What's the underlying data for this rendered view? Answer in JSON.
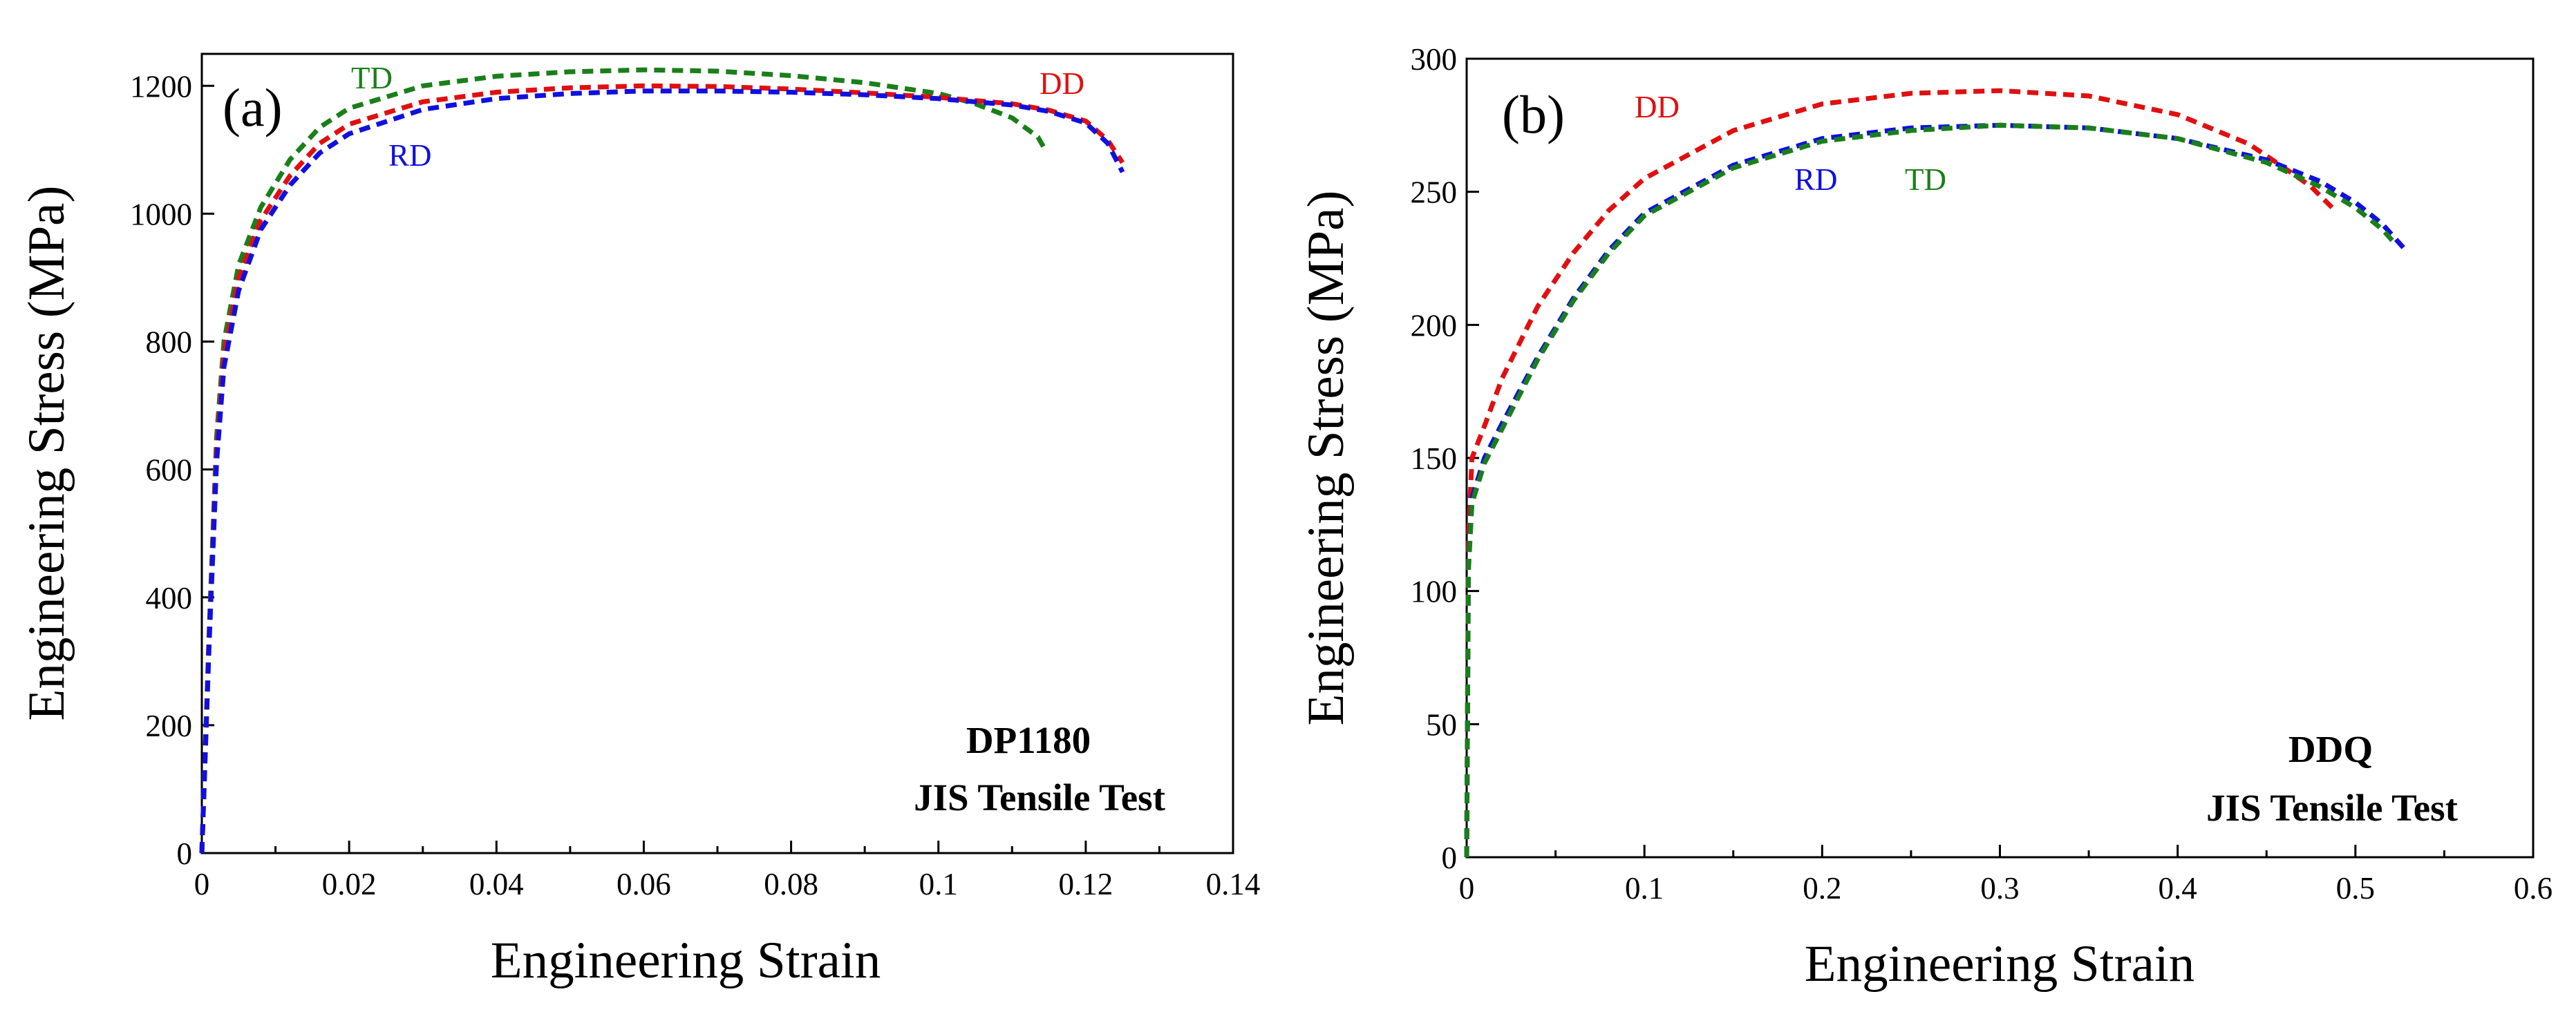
{
  "chart_data": [
    {
      "type": "line",
      "panel_label": "(a)",
      "xlabel": "Engineering Strain",
      "ylabel": "Engineering Stress (MPa)",
      "xlim": [
        0,
        0.14
      ],
      "ylim": [
        0,
        1250
      ],
      "x_ticks": [
        0,
        0.02,
        0.04,
        0.06,
        0.08,
        0.1,
        0.12,
        0.14
      ],
      "x_tick_labels": [
        "0",
        "0.02",
        "0.04",
        "0.06",
        "0.08",
        "0.1",
        "0.12",
        "0.14"
      ],
      "y_ticks": [
        0,
        200,
        400,
        600,
        800,
        1000,
        1200
      ],
      "y_tick_labels": [
        "0",
        "200",
        "400",
        "600",
        "800",
        "1000",
        "1200"
      ],
      "grid": false,
      "line_style": "dashed",
      "annotations": [
        "DP1180",
        "JIS Tensile Test"
      ],
      "series": [
        {
          "name": "TD",
          "color": "#1a7f1a",
          "x": [
            0,
            0.001,
            0.002,
            0.003,
            0.005,
            0.008,
            0.012,
            0.016,
            0.02,
            0.03,
            0.04,
            0.05,
            0.06,
            0.07,
            0.08,
            0.09,
            0.1,
            0.105,
            0.11,
            0.1135,
            0.1145
          ],
          "y": [
            0,
            350,
            650,
            800,
            920,
            1010,
            1085,
            1135,
            1165,
            1200,
            1215,
            1222,
            1225,
            1223,
            1216,
            1205,
            1188,
            1172,
            1150,
            1120,
            1100
          ]
        },
        {
          "name": "DD",
          "color": "#e01010",
          "x": [
            0,
            0.001,
            0.002,
            0.003,
            0.005,
            0.008,
            0.012,
            0.016,
            0.02,
            0.03,
            0.04,
            0.05,
            0.06,
            0.07,
            0.08,
            0.09,
            0.1,
            0.11,
            0.115,
            0.12,
            0.123,
            0.125
          ],
          "y": [
            0,
            340,
            630,
            780,
            900,
            990,
            1060,
            1110,
            1140,
            1175,
            1190,
            1197,
            1200,
            1199,
            1195,
            1189,
            1182,
            1172,
            1162,
            1145,
            1115,
            1080
          ]
        },
        {
          "name": "RD",
          "color": "#1010e0",
          "x": [
            0,
            0.001,
            0.002,
            0.003,
            0.005,
            0.008,
            0.012,
            0.016,
            0.02,
            0.03,
            0.04,
            0.05,
            0.06,
            0.07,
            0.08,
            0.09,
            0.1,
            0.11,
            0.115,
            0.12,
            0.123,
            0.125
          ],
          "y": [
            0,
            330,
            610,
            760,
            880,
            975,
            1045,
            1095,
            1125,
            1163,
            1180,
            1188,
            1192,
            1192,
            1190,
            1186,
            1180,
            1170,
            1160,
            1142,
            1110,
            1065
          ]
        }
      ]
    },
    {
      "type": "line",
      "panel_label": "(b)",
      "xlabel": "Engineering Strain",
      "ylabel": "Engineering Stress (MPa)",
      "xlim": [
        0,
        0.6
      ],
      "ylim": [
        0,
        300
      ],
      "x_ticks": [
        0,
        0.1,
        0.2,
        0.3,
        0.4,
        0.5,
        0.6
      ],
      "x_tick_labels": [
        "0",
        "0.1",
        "0.2",
        "0.3",
        "0.4",
        "0.5",
        "0.6"
      ],
      "y_ticks": [
        0,
        50,
        100,
        150,
        200,
        250,
        300
      ],
      "y_tick_labels": [
        "0",
        "50",
        "100",
        "150",
        "200",
        "250",
        "300"
      ],
      "grid": false,
      "line_style": "dashed",
      "annotations": [
        "DDQ",
        "JIS Tensile Test"
      ],
      "series": [
        {
          "name": "DD",
          "color": "#e01010",
          "x": [
            0,
            0.001,
            0.003,
            0.01,
            0.02,
            0.04,
            0.06,
            0.08,
            0.1,
            0.15,
            0.2,
            0.25,
            0.3,
            0.35,
            0.4,
            0.44,
            0.46,
            0.475,
            0.487
          ],
          "y": [
            0,
            120,
            150,
            162,
            180,
            207,
            227,
            243,
            255,
            273,
            283,
            287,
            288,
            286,
            279,
            268,
            259,
            252,
            244
          ]
        },
        {
          "name": "RD",
          "color": "#1010e0",
          "x": [
            0,
            0.001,
            0.003,
            0.01,
            0.02,
            0.04,
            0.06,
            0.08,
            0.1,
            0.15,
            0.2,
            0.25,
            0.3,
            0.35,
            0.4,
            0.45,
            0.48,
            0.5,
            0.515,
            0.527
          ],
          "y": [
            0,
            110,
            135,
            150,
            163,
            188,
            210,
            228,
            242,
            260,
            270,
            274,
            275,
            274,
            270,
            262,
            254,
            246,
            238,
            229
          ]
        },
        {
          "name": "TD",
          "color": "#1a7f1a",
          "x": [
            0,
            0.001,
            0.003,
            0.01,
            0.02,
            0.04,
            0.06,
            0.08,
            0.1,
            0.15,
            0.2,
            0.25,
            0.3,
            0.35,
            0.4,
            0.45,
            0.48,
            0.5,
            0.515,
            0.523
          ],
          "y": [
            0,
            108,
            133,
            148,
            161,
            187,
            209,
            227,
            241,
            259,
            269,
            273,
            275,
            274,
            270,
            261,
            252,
            244,
            236,
            230
          ]
        }
      ]
    }
  ]
}
